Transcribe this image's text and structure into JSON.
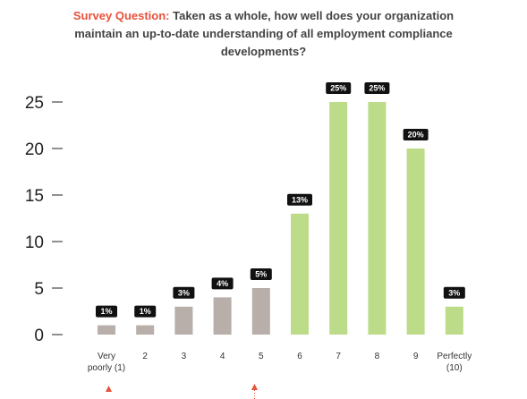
{
  "title": {
    "lead": "Survey Question:",
    "line1": "Taken as a whole, how well does your organization",
    "line2": "maintain an up-to-date understanding of all employment compliance",
    "line3": "developments?"
  },
  "colors": {
    "title_accent": "#e8513b",
    "low_bar": "#b8aeaa",
    "high_bar": "#bcdc8a",
    "label_bg": "#111111",
    "marker": "#e8513b"
  },
  "chart_data": {
    "type": "bar",
    "categories": [
      [
        "Very",
        "poorly (1)"
      ],
      [
        "2"
      ],
      [
        "3"
      ],
      [
        "4"
      ],
      [
        "5"
      ],
      [
        "6"
      ],
      [
        "7"
      ],
      [
        "8"
      ],
      [
        "9"
      ],
      [
        "Perfectly",
        "(10)"
      ]
    ],
    "values": [
      1,
      1,
      3,
      4,
      5,
      13,
      25,
      25,
      20,
      3
    ],
    "data_labels": [
      "1%",
      "1%",
      "3%",
      "4%",
      "5%",
      "13%",
      "25%",
      "25%",
      "20%",
      "3%"
    ],
    "colors": [
      "low",
      "low",
      "low",
      "low",
      "low",
      "high",
      "high",
      "high",
      "high",
      "high"
    ],
    "yticks": [
      0,
      5,
      10,
      15,
      20,
      25
    ],
    "ylim": [
      0,
      25
    ],
    "grid": false,
    "legend": "none"
  }
}
